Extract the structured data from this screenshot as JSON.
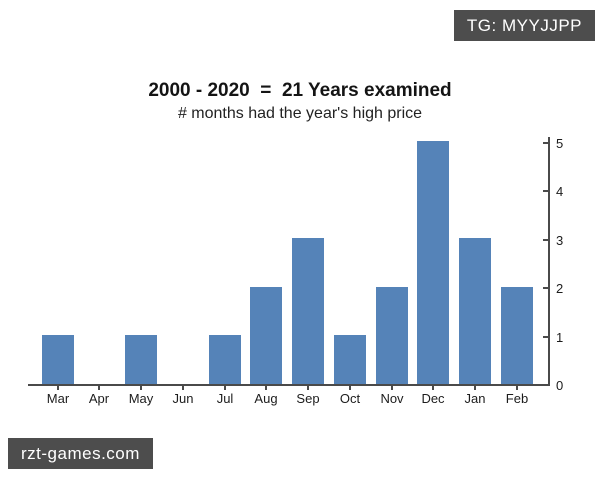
{
  "overlay": {
    "tg_badge": "TG: MYYJJPP",
    "site_badge": "rzt-games.com",
    "badge_bg": "#4d4d4d",
    "badge_text_color": "#ffffff"
  },
  "chart_data": {
    "type": "bar",
    "title": "2000 - 2020  =  21 Years examined",
    "subtitle": "# months had the year's high price",
    "categories": [
      "Mar",
      "Apr",
      "May",
      "Jun",
      "Jul",
      "Aug",
      "Sep",
      "Oct",
      "Nov",
      "Dec",
      "Jan",
      "Feb"
    ],
    "values": [
      1,
      0,
      1,
      0,
      1,
      2,
      3,
      1,
      2,
      5,
      3,
      2
    ],
    "xlabel": "",
    "ylabel": "",
    "ylim": [
      0,
      5
    ],
    "yticks": [
      0,
      1,
      2,
      3,
      4,
      5
    ],
    "y_axis_position": "right",
    "grid": false,
    "legend": "none",
    "bar_color": "#5583b8",
    "axis_color": "#4a4a4a"
  }
}
